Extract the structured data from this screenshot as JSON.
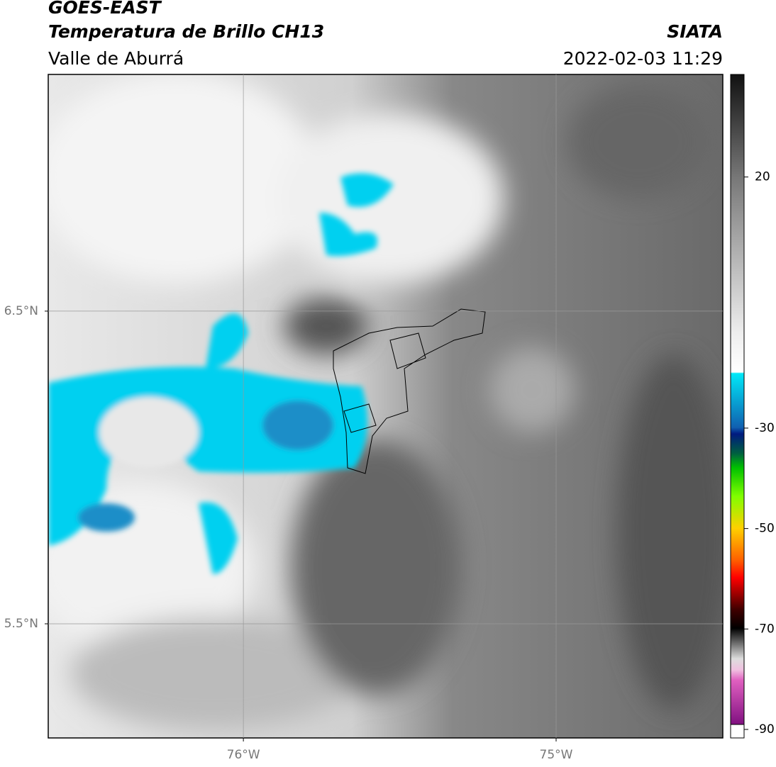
{
  "header": {
    "satellite": "GOES-EAST",
    "product": "Temperatura de Brillo CH13",
    "region": "Valle de Aburrá",
    "source": "SIATA",
    "timestamp": "2022-02-03 11:29"
  },
  "map": {
    "xlim": [
      -76.624,
      -74.467
    ],
    "ylim": [
      5.135,
      7.257
    ],
    "xticks": [
      {
        "value": -76,
        "label": "76°W"
      },
      {
        "value": -75,
        "label": "75°W"
      }
    ],
    "yticks": [
      {
        "value": 6.5,
        "label": "6.5°N"
      },
      {
        "value": 5.5,
        "label": "5.5°N"
      }
    ]
  },
  "colorbar": {
    "lim": [
      -90,
      40
    ],
    "ticks": [
      20,
      -30,
      -50,
      -70,
      -90
    ]
  }
}
